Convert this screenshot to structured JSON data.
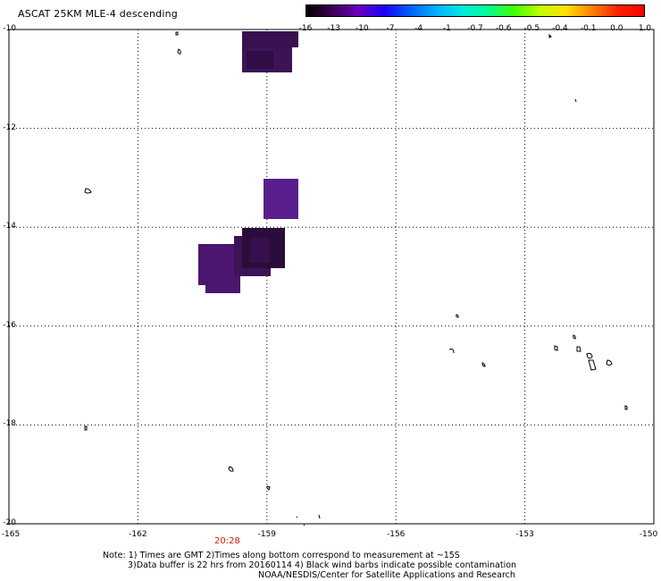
{
  "title": "ASCAT 25KM MLE-4 descending",
  "colorbar": {
    "ticks": [
      "-16",
      "-13",
      "-10",
      "-7",
      "-4",
      "-1",
      "-0.7",
      "-0.6",
      "-0.5",
      "-0.4",
      "-0.1",
      "0.0",
      "1.0"
    ],
    "colors": [
      "#000000",
      "#3a0050",
      "#6a00c0",
      "#1e00ff",
      "#0060ff",
      "#00b0ff",
      "#00e8e0",
      "#00ff90",
      "#40ff00",
      "#c0ff00",
      "#ffe000",
      "#ff8000",
      "#ff2000",
      "#ff0000"
    ]
  },
  "axes": {
    "lat_labels": [
      "-10",
      "-12",
      "-14",
      "-16",
      "-18",
      "-20"
    ],
    "lon_labels": [
      "-165",
      "-162",
      "-159",
      "-156",
      "-153",
      "-150"
    ],
    "lat_range": [
      -20,
      -10
    ],
    "lon_range": [
      -165,
      -150
    ],
    "grid": "dotted"
  },
  "time_label": "20:28",
  "notes": {
    "line1": "Note: 1) Times are GMT 2)Times along bottom correspond to measurement at ~15S",
    "line2": "3)Data buffer is 22 hrs from 20160114 4) Black wind barbs indicate possible contamination",
    "line3": "NOAA/NESDIS/Center for Satellite Applications and Research"
  },
  "colors": {
    "data_dark": "#2a0d3a",
    "data_mid": "#3d1356",
    "data_light": "#5a1e8c",
    "coast": "#000000",
    "time": "#cc2200"
  }
}
